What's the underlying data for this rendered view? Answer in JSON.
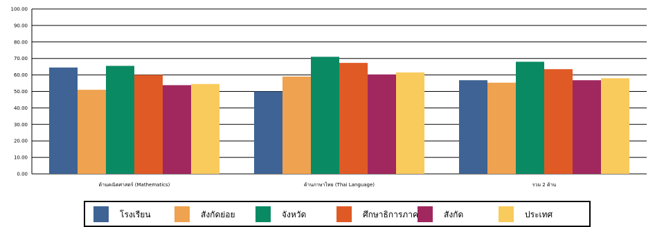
{
  "chart_data": {
    "type": "bar",
    "title": "",
    "xlabel": "",
    "ylabel": "",
    "ylim": [
      0,
      100
    ],
    "y_ticks": [
      "0.00",
      "10.00",
      "20.00",
      "30.00",
      "40.00",
      "50.00",
      "60.00",
      "70.00",
      "80.00",
      "90.00",
      "100.00"
    ],
    "grid": true,
    "legend_position": "bottom",
    "categories": [
      "ด้านคณิตศาสตร์ (Mathematics)",
      "ด้านภาษาไทย (Thai Language)",
      "รวม 2 ด้าน"
    ],
    "series": [
      {
        "name": "โรงเรียน",
        "color": "#3E6394",
        "values": [
          64.5,
          50.0,
          56.8
        ]
      },
      {
        "name": "สังกัดย่อย",
        "color": "#EFA24F",
        "values": [
          51.0,
          59.0,
          55.3
        ]
      },
      {
        "name": "จังหวัด",
        "color": "#0A8A63",
        "values": [
          65.5,
          71.0,
          68.0
        ]
      },
      {
        "name": "ศึกษาธิการภาค",
        "color": "#E05A25",
        "values": [
          60.0,
          67.3,
          63.5
        ]
      },
      {
        "name": "สังกัด",
        "color": "#A0285E",
        "values": [
          53.8,
          60.3,
          56.8
        ]
      },
      {
        "name": "ประเทศ",
        "color": "#F9CB5C",
        "values": [
          54.5,
          61.5,
          58.0
        ]
      }
    ]
  }
}
